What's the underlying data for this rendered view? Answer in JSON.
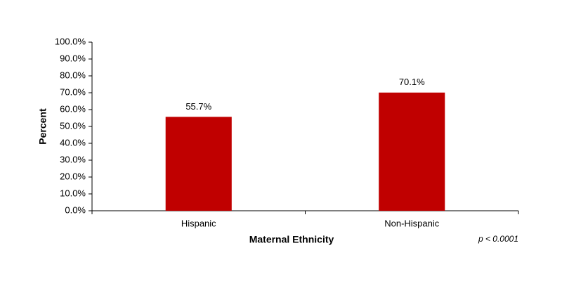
{
  "chart_data": {
    "type": "bar",
    "categories": [
      "Hispanic",
      "Non-Hispanic"
    ],
    "values": [
      55.7,
      70.1
    ],
    "value_labels": [
      "55.7%",
      "70.1%"
    ],
    "color": "#c00000",
    "ylim": [
      0,
      100
    ],
    "yticks": [
      {
        "value": 0,
        "label": "0.0%"
      },
      {
        "value": 10,
        "label": "10.0%"
      },
      {
        "value": 20,
        "label": "20.0%"
      },
      {
        "value": 30,
        "label": "30.0%"
      },
      {
        "value": 40,
        "label": "40.0%"
      },
      {
        "value": 50,
        "label": "50.0%"
      },
      {
        "value": 60,
        "label": "60.0%"
      },
      {
        "value": 70,
        "label": "70.0%"
      },
      {
        "value": 80,
        "label": "80.0%"
      },
      {
        "value": 90,
        "label": "90.0%"
      },
      {
        "value": 100,
        "label": "100.0%"
      }
    ],
    "y_label": "Percent",
    "x_label": "Maternal Ethnicity",
    "annotation": "p < 0.0001",
    "grid": false
  }
}
